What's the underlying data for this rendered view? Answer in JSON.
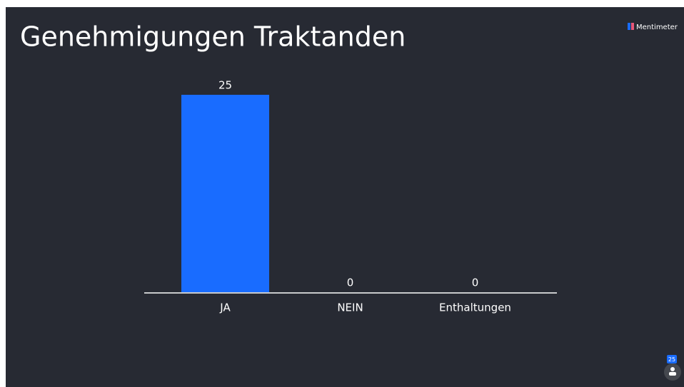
{
  "brand": "Mentimeter",
  "participants": 25,
  "chart_data": {
    "type": "bar",
    "title": "Genehmigungen Traktanden",
    "categories": [
      "JA",
      "NEIN",
      "Enthaltungen"
    ],
    "values": [
      25,
      0,
      0
    ],
    "color": "#196cff"
  }
}
